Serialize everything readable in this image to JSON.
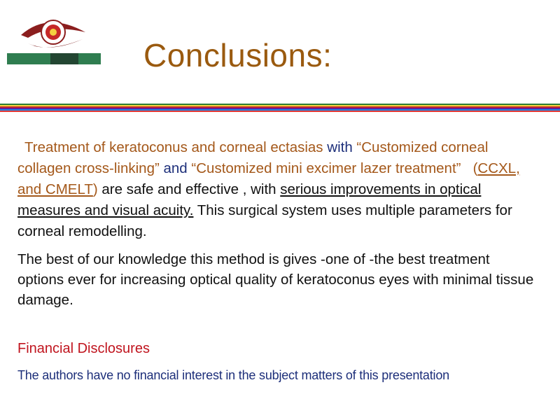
{
  "slide": {
    "title": "Conclusions:",
    "paragraph1": {
      "t1": "Treatment of keratoconus and corneal ectasias",
      "t2": " with ",
      "t3": "“Customized corneal collagen cross-linking”",
      "t4": " and ",
      "t5": "“Customized mini excimer lazer treatment”",
      "t6": "(",
      "t7": "CCXL, and CMELT",
      "t8": ")",
      "t9": " are safe and effective , with ",
      "t10": "serious improvements in optical measures and visual acuity.",
      "t11": " This surgical system uses multiple parameters for corneal remodelling."
    },
    "paragraph2": "The best of our knowledge this method is gives -one of -the best treatment options ever for increasing optical quality of keratoconus eyes with minimal tissue damage.",
    "financial": {
      "heading": "Financial Disclosures",
      "text": "The authors have no financial interest in the subject matters of this presentation"
    }
  },
  "colors": {
    "title": "#9a5a0f",
    "orange_text": "#a4581a",
    "navy_text": "#1d2f7a",
    "red_heading": "#c0141e",
    "stripes": [
      "#2e7d32",
      "#f4d03f",
      "#c62828",
      "#6a1b9a",
      "#1e88e5",
      "#e53935"
    ]
  },
  "logo": {
    "icon": "eye-emblem-icon"
  }
}
